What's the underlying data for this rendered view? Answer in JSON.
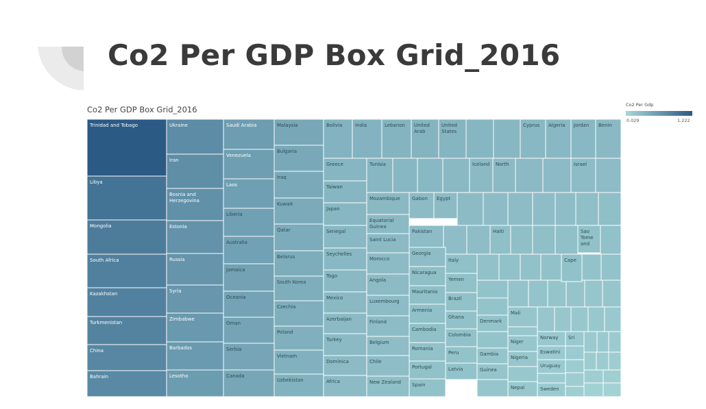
{
  "page": {
    "title": "Co2 Per GDP Box Grid_2016"
  },
  "chart_data": {
    "type": "treemap",
    "title": "Co2 Per GDP Box Grid_2016",
    "legend": {
      "title": "Co2 Per Gdp",
      "min_label": "0.029",
      "max_label": "1.222",
      "min": 0.029,
      "max": 1.222,
      "color_low": "#a8d8d8",
      "color_high": "#2b5a85",
      "placement": "top-right"
    },
    "colors": {
      "title_text": "#3a3a3a",
      "cell_border": "#ffffff",
      "deco_dark": "#d2d2d2",
      "deco_light": "#ebebeb"
    },
    "labeled_cells": [
      {
        "label": "Trinidad and Tobago",
        "value": 1.222
      },
      {
        "label": "Libya",
        "value": 0.99
      },
      {
        "label": "Mongolia",
        "value": 0.9
      },
      {
        "label": "South Africa",
        "value": 0.86
      },
      {
        "label": "Kazakhstan",
        "value": 0.85
      },
      {
        "label": "Turkmenistan",
        "value": 0.83
      },
      {
        "label": "China",
        "value": 0.8
      },
      {
        "label": "Bahrain",
        "value": 0.78
      },
      {
        "label": "Ukraine",
        "value": 0.75
      },
      {
        "label": "Iran",
        "value": 0.73
      },
      {
        "label": "Bosnia and Herzegovina",
        "value": 0.71
      },
      {
        "label": "Estonia",
        "value": 0.69
      },
      {
        "label": "Russia",
        "value": 0.67
      },
      {
        "label": "Syria",
        "value": 0.65
      },
      {
        "label": "Zimbabwe",
        "value": 0.63
      },
      {
        "label": "Barbados",
        "value": 0.62
      },
      {
        "label": "Lesotho",
        "value": 0.6
      },
      {
        "label": "Saudi Arabia",
        "value": 0.59
      },
      {
        "label": "Venezuela",
        "value": 0.58
      },
      {
        "label": "Laos",
        "value": 0.57
      },
      {
        "label": "Liberia",
        "value": 0.56
      },
      {
        "label": "Australia",
        "value": 0.55
      },
      {
        "label": "Jamaica",
        "value": 0.54
      },
      {
        "label": "Oceania",
        "value": 0.53
      },
      {
        "label": "Oman",
        "value": 0.52
      },
      {
        "label": "Serbia",
        "value": 0.51
      },
      {
        "label": "Canada",
        "value": 0.5
      },
      {
        "label": "Malaysia",
        "value": 0.49
      },
      {
        "label": "Bulgaria",
        "value": 0.48
      },
      {
        "label": "Iraq",
        "value": 0.47
      },
      {
        "label": "Kuwait",
        "value": 0.46
      },
      {
        "label": "Qatar",
        "value": 0.45
      },
      {
        "label": "Belarus",
        "value": 0.44
      },
      {
        "label": "South Korea",
        "value": 0.43
      },
      {
        "label": "Czechia",
        "value": 0.42
      },
      {
        "label": "Poland",
        "value": 0.41
      },
      {
        "label": "Vietnam",
        "value": 0.4
      },
      {
        "label": "Uzbekistan",
        "value": 0.39
      },
      {
        "label": "Bolivia",
        "value": 0.38
      },
      {
        "label": "India",
        "value": 0.38
      },
      {
        "label": "Lebanon",
        "value": 0.37
      },
      {
        "label": "United Arab",
        "value": 0.37
      },
      {
        "label": "United States",
        "value": 0.36
      },
      {
        "label": "Cyprus",
        "value": 0.33
      },
      {
        "label": "Algeria",
        "value": 0.33
      },
      {
        "label": "Jordan",
        "value": 0.33
      },
      {
        "label": "Benin",
        "value": 0.32
      },
      {
        "label": "Greece",
        "value": 0.35
      },
      {
        "label": "Tunisia",
        "value": 0.34
      },
      {
        "label": "Iceland",
        "value": 0.31
      },
      {
        "label": "North",
        "value": 0.31
      },
      {
        "label": "Israel",
        "value": 0.29
      },
      {
        "label": "Taiwan",
        "value": 0.35
      },
      {
        "label": "Japan",
        "value": 0.34
      },
      {
        "label": "Senegal",
        "value": 0.33
      },
      {
        "label": "Seychelles",
        "value": 0.33
      },
      {
        "label": "Togo",
        "value": 0.32
      },
      {
        "label": "Mexico",
        "value": 0.32
      },
      {
        "label": "Azerbaijan",
        "value": 0.31
      },
      {
        "label": "Turkey",
        "value": 0.31
      },
      {
        "label": "Dominica",
        "value": 0.3
      },
      {
        "label": "Africa",
        "value": 0.3
      },
      {
        "label": "Mozambique",
        "value": 0.32
      },
      {
        "label": "Equatorial Guinea",
        "value": 0.31
      },
      {
        "label": "Saint Lucia",
        "value": 0.31
      },
      {
        "label": "Morocco",
        "value": 0.3
      },
      {
        "label": "Angola",
        "value": 0.3
      },
      {
        "label": "Luxembourg",
        "value": 0.29
      },
      {
        "label": "Finland",
        "value": 0.29
      },
      {
        "label": "Belgium",
        "value": 0.28
      },
      {
        "label": "Chile",
        "value": 0.28
      },
      {
        "label": "New Zealand",
        "value": 0.27
      },
      {
        "label": "Gabon",
        "value": 0.3
      },
      {
        "label": "Egypt",
        "value": 0.3
      },
      {
        "label": "Pakistan",
        "value": 0.29
      },
      {
        "label": "Haiti",
        "value": 0.27
      },
      {
        "label": "Sao Tome and",
        "value": 0.25
      },
      {
        "label": "Georgia",
        "value": 0.28
      },
      {
        "label": "Nicaragua",
        "value": 0.27
      },
      {
        "label": "Mauritania",
        "value": 0.27
      },
      {
        "label": "Armenia",
        "value": 0.26
      },
      {
        "label": "Cambodia",
        "value": 0.26
      },
      {
        "label": "Romania",
        "value": 0.25
      },
      {
        "label": "Portugal",
        "value": 0.25
      },
      {
        "label": "Spain",
        "value": 0.24
      },
      {
        "label": "Italy",
        "value": 0.26
      },
      {
        "label": "Yemen",
        "value": 0.25
      },
      {
        "label": "Brazil",
        "value": 0.25
      },
      {
        "label": "Ghana",
        "value": 0.24
      },
      {
        "label": "Colombia",
        "value": 0.24
      },
      {
        "label": "Peru",
        "value": 0.23
      },
      {
        "label": "Latvia",
        "value": 0.23
      },
      {
        "label": "Cape",
        "value": 0.24
      },
      {
        "label": "Denmark",
        "value": 0.22
      },
      {
        "label": "Gambia",
        "value": 0.21
      },
      {
        "label": "Guinea",
        "value": 0.21
      },
      {
        "label": "Mali",
        "value": 0.2
      },
      {
        "label": "Niger",
        "value": 0.19
      },
      {
        "label": "Nigeria",
        "value": 0.19
      },
      {
        "label": "Nepal",
        "value": 0.18
      },
      {
        "label": "Norway",
        "value": 0.17
      },
      {
        "label": "Sri",
        "value": 0.17
      },
      {
        "label": "Eswatini",
        "value": 0.16
      },
      {
        "label": "Uruguay",
        "value": 0.16
      },
      {
        "label": "Sweden",
        "value": 0.15
      }
    ]
  }
}
